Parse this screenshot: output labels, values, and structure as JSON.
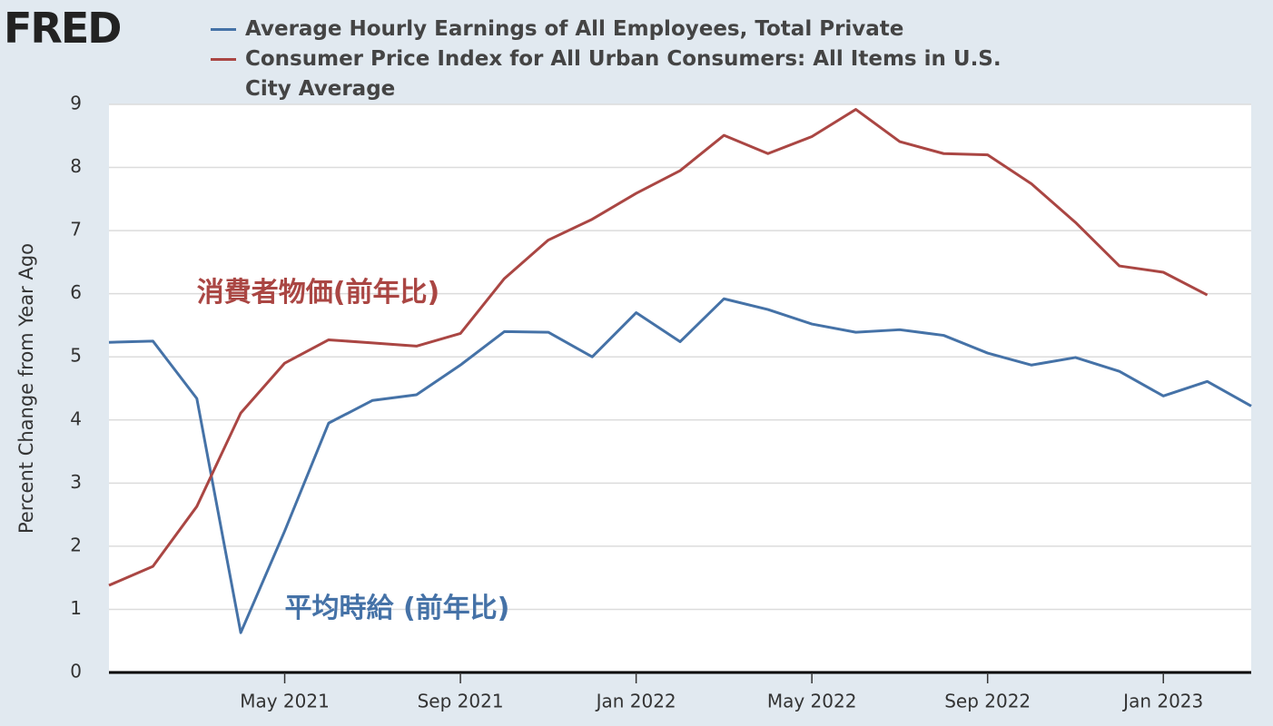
{
  "chart_data": {
    "type": "line",
    "logo": "FRED",
    "y_label": "Percent Change from Year Ago",
    "x": [
      "2021-01",
      "2021-02",
      "2021-03",
      "2021-04",
      "2021-05",
      "2021-06",
      "2021-07",
      "2021-08",
      "2021-09",
      "2021-10",
      "2021-11",
      "2021-12",
      "2022-01",
      "2022-02",
      "2022-03",
      "2022-04",
      "2022-05",
      "2022-06",
      "2022-07",
      "2022-08",
      "2022-09",
      "2022-10",
      "2022-11",
      "2022-12",
      "2023-01",
      "2023-02",
      "2023-03"
    ],
    "series": [
      {
        "name": "Average Hourly Earnings of All Employees, Total Private",
        "color": "#4572a7",
        "values": [
          5.23,
          5.25,
          4.34,
          0.63,
          2.24,
          3.95,
          4.31,
          4.4,
          4.87,
          5.4,
          5.39,
          5.0,
          5.7,
          5.24,
          5.92,
          5.75,
          5.52,
          5.39,
          5.43,
          5.34,
          5.06,
          4.87,
          4.99,
          4.77,
          4.38,
          4.61,
          4.22
        ]
      },
      {
        "name": "Consumer Price Index for All Urban Consumers: All Items in U.S. City Average",
        "color": "#aa4643",
        "values": [
          1.38,
          1.68,
          2.63,
          4.11,
          4.9,
          5.27,
          5.22,
          5.17,
          5.37,
          6.24,
          6.85,
          7.18,
          7.59,
          7.95,
          8.51,
          8.22,
          8.49,
          8.92,
          8.41,
          8.22,
          8.2,
          7.74,
          7.13,
          6.44,
          6.34,
          5.98,
          null
        ]
      }
    ],
    "annotations": [
      {
        "text": "消費者物価(前年比)",
        "color": "#aa4643",
        "x": "2021-03",
        "y": 6.0
      },
      {
        "text": "平均時給 (前年比)",
        "color": "#4572a7",
        "x": "2021-05",
        "y": 1.0
      }
    ],
    "xlim": [
      "2021-01",
      "2023-03"
    ],
    "xticks": [
      {
        "value": "2021-05",
        "label": "May 2021"
      },
      {
        "value": "2021-09",
        "label": "Sep 2021"
      },
      {
        "value": "2022-01",
        "label": "Jan 2022"
      },
      {
        "value": "2022-05",
        "label": "May 2022"
      },
      {
        "value": "2022-09",
        "label": "Sep 2022"
      },
      {
        "value": "2023-01",
        "label": "Jan 2023"
      }
    ],
    "ylim": [
      0,
      9
    ],
    "yticks": [
      0,
      1,
      2,
      3,
      4,
      5,
      6,
      7,
      8,
      9
    ],
    "grid": true
  }
}
